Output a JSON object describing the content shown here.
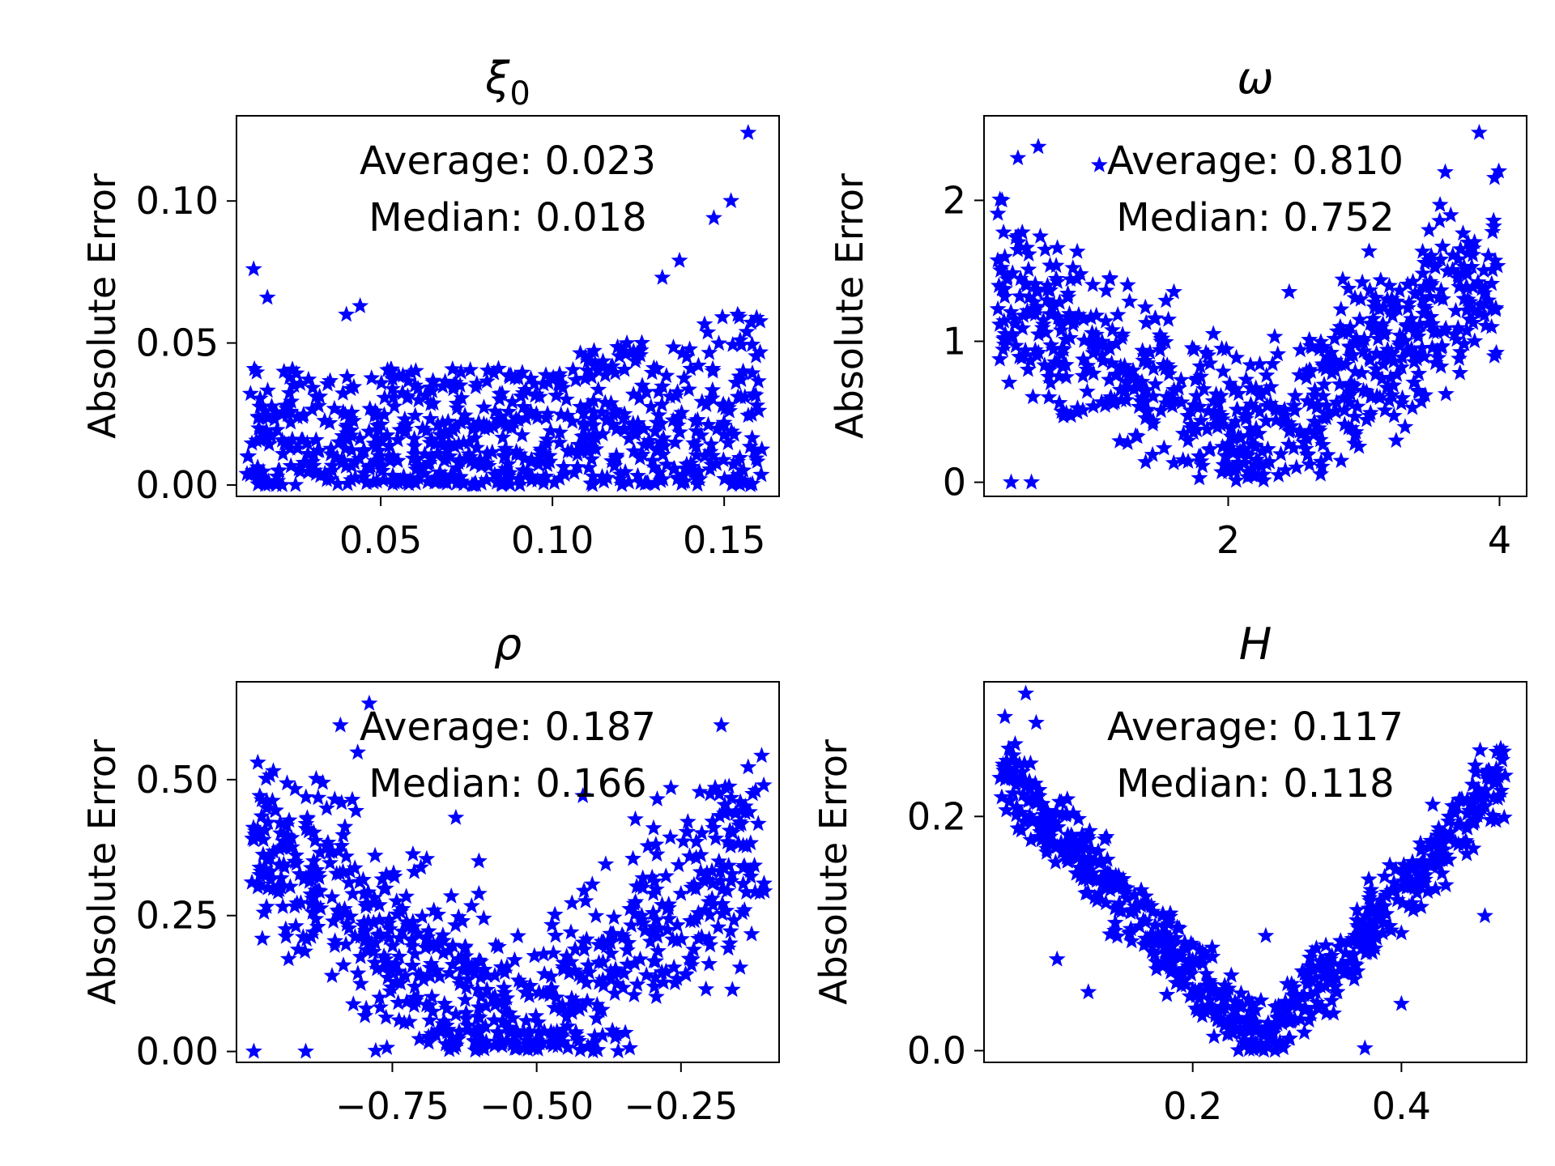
{
  "figure": {
    "suptitle": "",
    "marker_color": "#0000ff",
    "marker": "star"
  },
  "chart_data": [
    {
      "type": "scatter",
      "title": "ξ0",
      "title_main": "ξ",
      "title_sub": "0",
      "xlabel": "",
      "ylabel": "Absolute Error",
      "xlim": [
        0.008,
        0.166
      ],
      "ylim": [
        -0.004,
        0.13
      ],
      "xticks": [
        0.05,
        0.1,
        0.15
      ],
      "xtick_labels": [
        "0.05",
        "0.10",
        "0.15"
      ],
      "yticks": [
        0.0,
        0.05,
        0.1
      ],
      "ytick_labels": [
        "0.00",
        "0.05",
        "0.10"
      ],
      "annotations": [
        "Average: 0.023",
        "Median: 0.018"
      ],
      "generator": {
        "shape": "uniform-rise",
        "count": 720,
        "seed": 11,
        "x_range": [
          0.011,
          0.161
        ],
        "base": 0.016,
        "slope": 0.0,
        "rise_start": 0.09,
        "rise": 0.022,
        "spread": 0.025,
        "outliers": [
          [
            0.157,
            0.124
          ],
          [
            0.152,
            0.1
          ],
          [
            0.147,
            0.094
          ],
          [
            0.013,
            0.076
          ],
          [
            0.017,
            0.066
          ],
          [
            0.04,
            0.06
          ],
          [
            0.044,
            0.063
          ],
          [
            0.132,
            0.073
          ],
          [
            0.137,
            0.079
          ],
          [
            0.06,
            0.035
          ]
        ]
      }
    },
    {
      "type": "scatter",
      "title": "ω",
      "xlabel": "",
      "ylabel": "Absolute Error",
      "xlim": [
        0.2,
        4.2
      ],
      "ylim": [
        -0.1,
        2.6
      ],
      "xticks": [
        2,
        4
      ],
      "xtick_labels": [
        "2",
        "4"
      ],
      "yticks": [
        0,
        1,
        2
      ],
      "ytick_labels": [
        "0",
        "1",
        "2"
      ],
      "annotations": [
        "Average: 0.810",
        "Median: 0.752"
      ],
      "generator": {
        "shape": "v-curve",
        "count": 720,
        "seed": 23,
        "x_range": [
          0.3,
          4.0
        ],
        "center": 2.2,
        "min_val": 0.3,
        "left_val": 1.35,
        "right_val": 1.55,
        "spread": 0.45,
        "floor": 0.0,
        "outliers": [
          [
            3.85,
            2.48
          ],
          [
            0.6,
            2.38
          ],
          [
            3.6,
            2.2
          ],
          [
            0.45,
            2.3
          ],
          [
            1.05,
            2.25
          ],
          [
            0.4,
            0.0
          ],
          [
            0.55,
            0.0
          ],
          [
            2.45,
            1.35
          ],
          [
            1.6,
            1.35
          ]
        ]
      }
    },
    {
      "type": "scatter",
      "title": "ρ",
      "xlabel": "",
      "ylabel": "Absolute Error",
      "xlim": [
        -1.02,
        -0.08
      ],
      "ylim": [
        -0.02,
        0.68
      ],
      "xticks": [
        -0.75,
        -0.5,
        -0.25
      ],
      "xtick_labels": [
        "−0.75",
        "−0.50",
        "−0.25"
      ],
      "yticks": [
        0.0,
        0.25,
        0.5
      ],
      "ytick_labels": [
        "0.00",
        "0.25",
        "0.50"
      ],
      "annotations": [
        "Average: 0.187",
        "Median: 0.166"
      ],
      "generator": {
        "shape": "v-curve",
        "count": 720,
        "seed": 37,
        "x_range": [
          -0.995,
          -0.105
        ],
        "center": -0.52,
        "min_val": 0.02,
        "left_val": 0.4,
        "right_val": 0.4,
        "spread": 0.14,
        "floor": 0.0,
        "outliers": [
          [
            -0.79,
            0.64
          ],
          [
            -0.84,
            0.6
          ],
          [
            -0.81,
            0.55
          ],
          [
            -0.18,
            0.6
          ],
          [
            -0.42,
            0.47
          ],
          [
            -0.64,
            0.43
          ],
          [
            -0.6,
            0.35
          ],
          [
            -0.99,
            0.0
          ],
          [
            -0.9,
            0.0
          ],
          [
            -0.6,
            0.29
          ],
          [
            -0.3,
            0.32
          ],
          [
            -0.25,
            0.29
          ]
        ]
      }
    },
    {
      "type": "scatter",
      "title": "H",
      "xlabel": "",
      "ylabel": "Absolute Error",
      "xlim": [
        -0.0,
        0.52
      ],
      "ylim": [
        -0.01,
        0.315
      ],
      "xticks": [
        0.2,
        0.4
      ],
      "xtick_labels": [
        "0.2",
        "0.4"
      ],
      "yticks": [
        0.0,
        0.2
      ],
      "ytick_labels": [
        "0.0",
        "0.2"
      ],
      "annotations": [
        "Average: 0.117",
        "Median: 0.118"
      ],
      "generator": {
        "shape": "v-curve",
        "count": 720,
        "seed": 53,
        "x_range": [
          0.015,
          0.5
        ],
        "center": 0.265,
        "min_val": 0.005,
        "left_val": 0.24,
        "right_val": 0.235,
        "spread": 0.025,
        "floor": 0.0,
        "outliers": [
          [
            0.04,
            0.305
          ],
          [
            0.02,
            0.285
          ],
          [
            0.05,
            0.28
          ],
          [
            0.07,
            0.078
          ],
          [
            0.1,
            0.05
          ],
          [
            0.365,
            0.002
          ],
          [
            0.4,
            0.04
          ],
          [
            0.27,
            0.098
          ],
          [
            0.43,
            0.21
          ],
          [
            0.48,
            0.115
          ]
        ]
      }
    }
  ]
}
